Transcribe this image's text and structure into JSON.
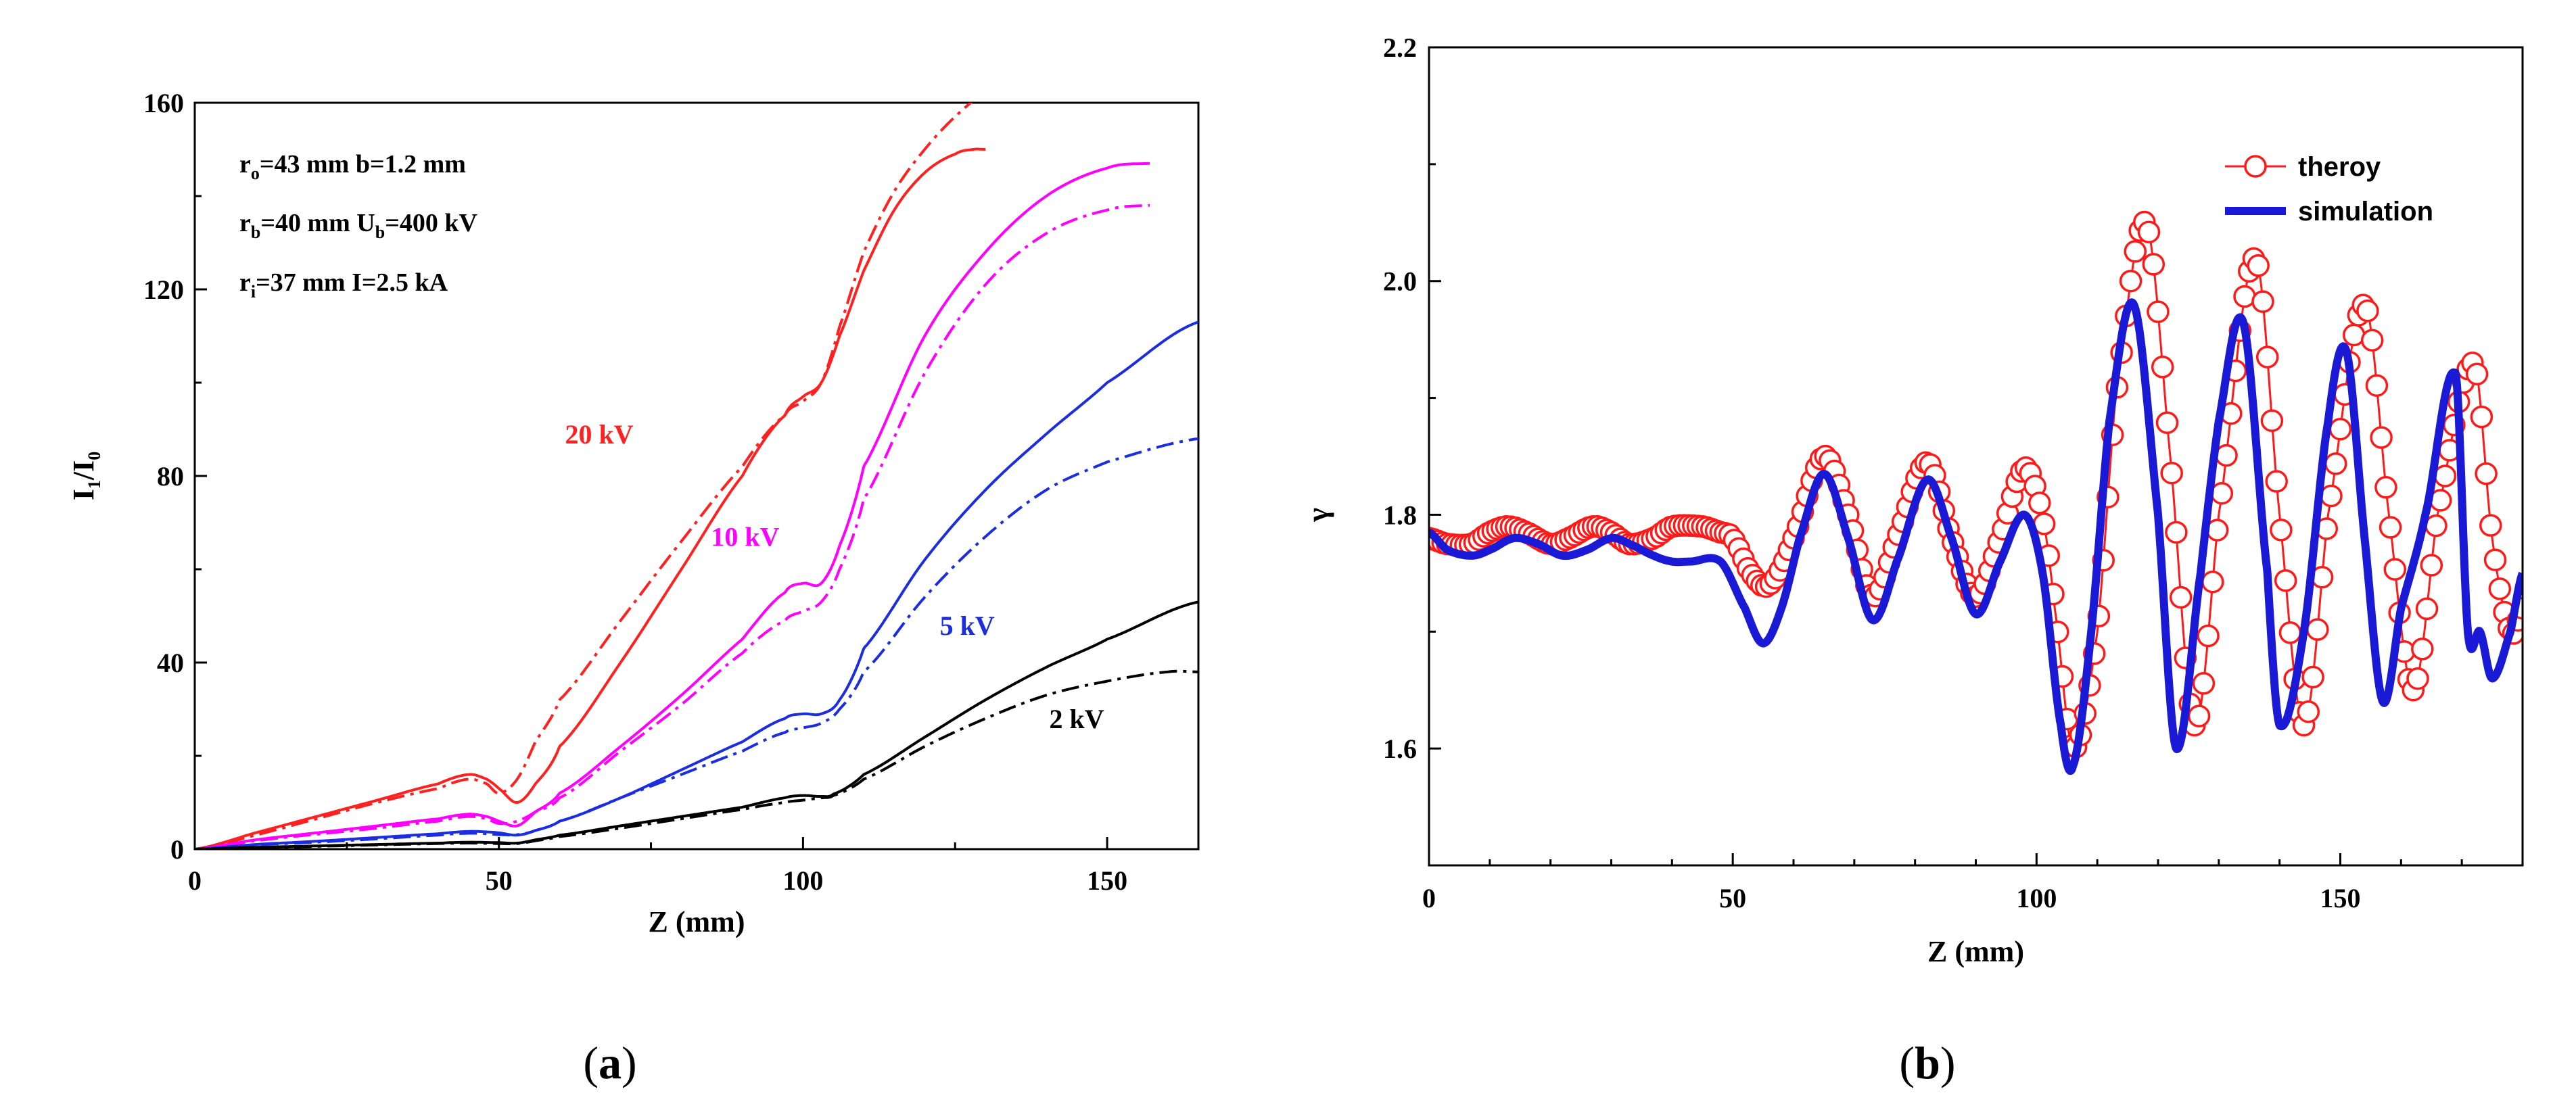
{
  "chart_data": [
    {
      "id": "a",
      "type": "line",
      "panel_label": "a",
      "xlabel": "Z (mm)",
      "ylabel": {
        "main": "I",
        "sub1": "1",
        "mid": "/I",
        "sub2": "0"
      },
      "xlim": [
        0,
        165
      ],
      "ylim": [
        0,
        160
      ],
      "xticks": [
        0,
        50,
        100,
        150
      ],
      "yticks": [
        0,
        40,
        80,
        120,
        160
      ],
      "params": [
        {
          "a": "r",
          "as": "o",
          "b": "=43 mm   b=1.2 mm",
          "c": "",
          "cs": "",
          "d": ""
        },
        {
          "a": "r",
          "as": "b",
          "b": "=40 mm  U",
          "c": "",
          "cs": "b",
          "d": "=400 kV"
        },
        {
          "a": "r",
          "as": "i",
          "b": "=37 mm   I=2.5 kA",
          "c": "",
          "cs": "",
          "d": ""
        }
      ],
      "series": [
        {
          "name": "20 kV",
          "label": "20 kV",
          "color": "#ff2020",
          "dashed": false,
          "x": [
            0,
            10,
            20,
            30,
            40,
            45,
            48,
            50,
            53,
            56,
            60,
            70,
            80,
            90,
            97,
            100,
            103,
            106,
            110,
            115,
            120,
            125,
            128,
            130
          ],
          "y": [
            0,
            3.5,
            7,
            10.5,
            14,
            16,
            15,
            13,
            10,
            14,
            22,
            40,
            60,
            80,
            93,
            97,
            100,
            110,
            124,
            137,
            145,
            149,
            150,
            150
          ]
        },
        {
          "name": "20 kV dash",
          "label": "",
          "color": "#ff2020",
          "dashed": true,
          "x": [
            0,
            10,
            20,
            30,
            40,
            45,
            48,
            50,
            53,
            56,
            60,
            70,
            80,
            90,
            97,
            100,
            103,
            106,
            110,
            115,
            120,
            125,
            130
          ],
          "y": [
            0,
            3,
            6.5,
            10,
            13,
            15,
            14,
            12,
            15,
            23,
            32,
            49,
            66,
            82,
            93,
            96,
            100,
            112,
            128,
            141,
            150,
            157,
            162
          ]
        },
        {
          "name": "10 kV",
          "label": "10 kV",
          "color": "#ff00ff",
          "dashed": false,
          "x": [
            0,
            10,
            20,
            30,
            40,
            45,
            48,
            50,
            53,
            56,
            60,
            70,
            80,
            90,
            97,
            100,
            103,
            106,
            110,
            120,
            130,
            140,
            150,
            157
          ],
          "y": [
            0,
            2,
            3.5,
            5,
            6.5,
            7.5,
            7,
            6,
            5,
            8,
            12,
            22,
            33,
            45,
            55,
            57,
            57,
            65,
            82,
            110,
            128,
            140,
            146,
            147
          ]
        },
        {
          "name": "10 kV dash",
          "label": "",
          "color": "#ff00ff",
          "dashed": true,
          "x": [
            0,
            10,
            20,
            30,
            40,
            45,
            48,
            50,
            53,
            56,
            60,
            70,
            80,
            90,
            97,
            100,
            103,
            106,
            110,
            120,
            130,
            140,
            150,
            157
          ],
          "y": [
            0,
            1.8,
            3.2,
            4.5,
            6,
            7,
            6.5,
            5.5,
            6,
            8,
            11,
            21,
            31,
            42,
            49,
            51,
            53,
            60,
            75,
            102,
            121,
            132,
            137,
            138
          ]
        },
        {
          "name": "5 kV",
          "label": "5 kV",
          "color": "#1a2ee0",
          "dashed": false,
          "x": [
            0,
            10,
            20,
            30,
            40,
            45,
            48,
            50,
            53,
            56,
            60,
            70,
            80,
            90,
            97,
            100,
            103,
            106,
            110,
            120,
            130,
            140,
            150,
            165
          ],
          "y": [
            0,
            1,
            1.7,
            2.5,
            3.3,
            3.8,
            3.7,
            3.5,
            3,
            4,
            6,
            11,
            17,
            23,
            28,
            29,
            29,
            32,
            43,
            62,
            77,
            89,
            100,
            113
          ]
        },
        {
          "name": "5 kV dash",
          "label": "",
          "color": "#1a2ee0",
          "dashed": true,
          "x": [
            0,
            10,
            20,
            30,
            40,
            45,
            48,
            50,
            53,
            56,
            60,
            70,
            80,
            90,
            97,
            100,
            103,
            106,
            110,
            120,
            130,
            140,
            150,
            165
          ],
          "y": [
            0,
            0.9,
            1.5,
            2.2,
            3,
            3.4,
            3.3,
            3.1,
            3.1,
            4,
            6,
            11,
            16,
            21,
            25,
            26,
            27,
            30,
            38,
            54,
            67,
            77,
            83,
            88
          ]
        },
        {
          "name": "2 kV",
          "label": "2 kV",
          "color": "#000000",
          "dashed": false,
          "x": [
            0,
            10,
            20,
            30,
            40,
            45,
            50,
            53,
            56,
            60,
            70,
            80,
            90,
            97,
            100,
            103,
            105,
            110,
            120,
            130,
            140,
            150,
            165
          ],
          "y": [
            0,
            0.4,
            0.7,
            1,
            1.3,
            1.5,
            1.4,
            1.3,
            2,
            3,
            5,
            7,
            9,
            11,
            11.5,
            11.3,
            11.8,
            16,
            24,
            32,
            39,
            45,
            53
          ]
        },
        {
          "name": "2 kV dash",
          "label": "",
          "color": "#000000",
          "dashed": true,
          "x": [
            0,
            10,
            20,
            30,
            40,
            45,
            50,
            53,
            56,
            60,
            70,
            80,
            90,
            97,
            100,
            103,
            105,
            110,
            120,
            130,
            140,
            150,
            160,
            165
          ],
          "y": [
            0,
            0.3,
            0.6,
            0.9,
            1.2,
            1.3,
            1.2,
            1.2,
            1.8,
            2.7,
            4.5,
            6.5,
            8.5,
            10,
            10.5,
            11,
            11.5,
            15,
            22,
            28,
            33,
            36,
            38,
            38
          ]
        }
      ]
    },
    {
      "id": "b",
      "type": "line",
      "panel_label": "b",
      "xlabel": "Z (mm)",
      "ylabel": "γ",
      "xlim": [
        0,
        180
      ],
      "ylim": [
        1.5,
        2.2
      ],
      "xticks": [
        0,
        50,
        100,
        150
      ],
      "yticks": [
        1.6,
        1.8,
        2.0,
        2.2
      ],
      "ytick_labels": [
        "1.6",
        "1.8",
        "2.0",
        "2.2"
      ],
      "legend": [
        "theroy",
        "simulation"
      ],
      "legend_position": "top-right",
      "series": [
        {
          "name": "theroy",
          "color": "#ff1a1a",
          "marker": "circle-open",
          "x": [
            0,
            3,
            7,
            10,
            13,
            16,
            20,
            23,
            27,
            30,
            33,
            37,
            40,
            45,
            48,
            50,
            53,
            56,
            60,
            65,
            69,
            73,
            77,
            82,
            86,
            90,
            94,
            98,
            101,
            103,
            106,
            110,
            113,
            118,
            122,
            126,
            130,
            136,
            140,
            144,
            148,
            154,
            158,
            162,
            166,
            172,
            175,
            178,
            180
          ],
          "y": [
            1.78,
            1.775,
            1.775,
            1.785,
            1.79,
            1.785,
            1.775,
            1.78,
            1.79,
            1.785,
            1.775,
            1.78,
            1.79,
            1.79,
            1.785,
            1.78,
            1.75,
            1.74,
            1.78,
            1.85,
            1.8,
            1.73,
            1.78,
            1.845,
            1.78,
            1.73,
            1.78,
            1.84,
            1.8,
            1.72,
            1.6,
            1.7,
            1.9,
            2.05,
            1.85,
            1.62,
            1.8,
            2.02,
            1.8,
            1.62,
            1.8,
            1.98,
            1.8,
            1.65,
            1.8,
            1.93,
            1.78,
            1.7,
            1.72
          ]
        },
        {
          "name": "simulation",
          "color": "#1a1ad6",
          "marker": "none",
          "x": [
            0,
            3,
            7,
            10,
            14,
            18,
            22,
            26,
            30,
            33,
            37,
            40,
            43,
            48,
            52,
            55,
            58,
            61,
            65,
            69,
            73,
            77,
            82,
            86,
            90,
            94,
            98,
            101,
            104,
            106,
            109,
            112,
            116,
            120,
            123,
            127,
            130,
            134,
            138,
            140,
            144,
            148,
            151,
            154,
            157,
            160,
            164,
            169,
            171,
            173,
            175,
            178,
            180
          ],
          "y": [
            1.785,
            1.77,
            1.765,
            1.77,
            1.78,
            1.775,
            1.765,
            1.77,
            1.78,
            1.775,
            1.765,
            1.76,
            1.76,
            1.76,
            1.72,
            1.69,
            1.72,
            1.78,
            1.835,
            1.78,
            1.71,
            1.76,
            1.83,
            1.78,
            1.715,
            1.76,
            1.8,
            1.75,
            1.62,
            1.585,
            1.7,
            1.88,
            1.98,
            1.8,
            1.6,
            1.75,
            1.88,
            1.965,
            1.75,
            1.62,
            1.7,
            1.88,
            1.94,
            1.78,
            1.64,
            1.72,
            1.8,
            1.92,
            1.7,
            1.7,
            1.66,
            1.7,
            1.75
          ]
        }
      ]
    }
  ]
}
